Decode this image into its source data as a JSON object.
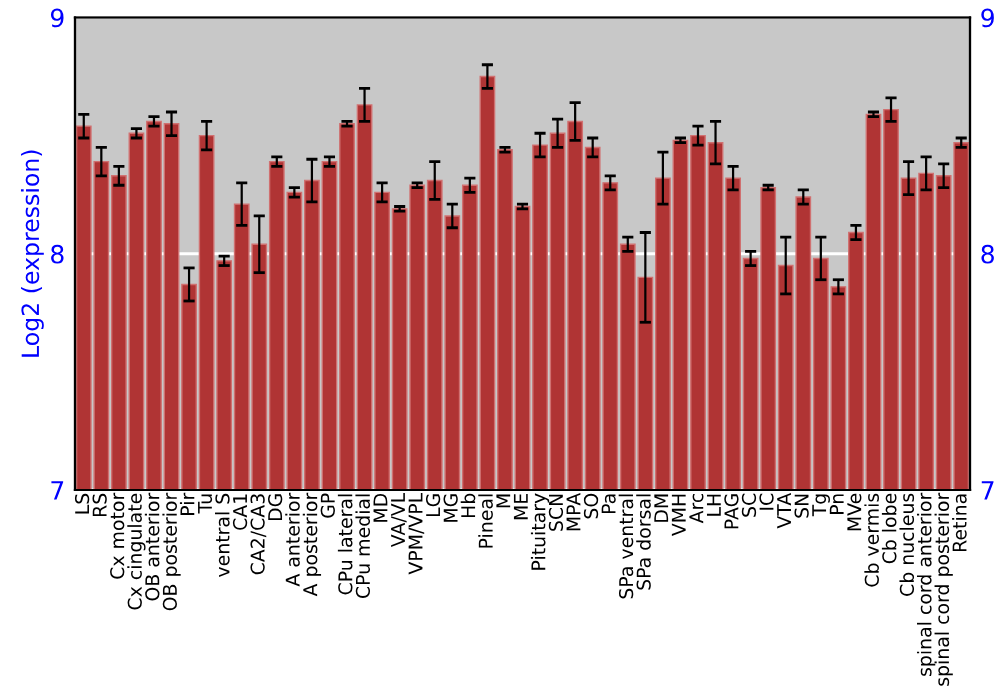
{
  "chart_data": {
    "type": "bar",
    "ylabel": "Log2 (expression)",
    "categories": [
      "LS",
      "RS",
      "Cx motor",
      "Cx cingulate",
      "OB anterior",
      "OB posterior",
      "Pir",
      "Tu",
      "ventral S",
      "CA1",
      "CA2/CA3",
      "DG",
      "A anterior",
      "A posterior",
      "GP",
      "CPu lateral",
      "CPu medial",
      "MD",
      "VA/VL",
      "VPM/VPL",
      "LG",
      "MG",
      "Hb",
      "Pineal",
      "M",
      "ME",
      "Pituitary",
      "SCN",
      "MPA",
      "SO",
      "Pa",
      "SPa ventral",
      "SPa dorsal",
      "DM",
      "VMH",
      "Arc",
      "LH",
      "PAG",
      "SC",
      "IC",
      "VTA",
      "SN",
      "Tg",
      "Pn",
      "MVe",
      "Cb vermis",
      "Cb lobe",
      "Cb nucleus",
      "spinal cord anterior",
      "spinal cord posterior",
      "Retina"
    ],
    "values": [
      8.54,
      8.39,
      8.33,
      8.51,
      8.56,
      8.55,
      7.87,
      8.5,
      7.97,
      8.21,
      8.04,
      8.39,
      8.26,
      8.31,
      8.39,
      8.55,
      8.63,
      8.26,
      8.19,
      8.29,
      8.31,
      8.16,
      8.29,
      8.75,
      8.44,
      8.2,
      8.46,
      8.51,
      8.56,
      8.45,
      8.3,
      8.04,
      7.9,
      8.32,
      8.48,
      8.5,
      8.47,
      8.32,
      7.98,
      8.28,
      7.95,
      8.24,
      7.98,
      7.86,
      8.09,
      8.59,
      8.61,
      8.32,
      8.34,
      8.33,
      8.47
    ],
    "errors": [
      0.05,
      0.06,
      0.04,
      0.02,
      0.02,
      0.05,
      0.07,
      0.06,
      0.02,
      0.09,
      0.12,
      0.02,
      0.02,
      0.09,
      0.02,
      0.01,
      0.07,
      0.04,
      0.01,
      0.01,
      0.08,
      0.05,
      0.03,
      0.05,
      0.01,
      0.01,
      0.05,
      0.06,
      0.08,
      0.04,
      0.03,
      0.03,
      0.19,
      0.11,
      0.01,
      0.04,
      0.09,
      0.05,
      0.03,
      0.01,
      0.12,
      0.03,
      0.09,
      0.03,
      0.03,
      0.01,
      0.05,
      0.07,
      0.07,
      0.05,
      0.02
    ],
    "color": "#b03434",
    "ylim": [
      7,
      9
    ],
    "yticks": [
      7,
      8,
      9
    ],
    "y2lim": [
      7,
      9
    ],
    "y2ticks": [
      7,
      8,
      9
    ],
    "grid": "y"
  }
}
